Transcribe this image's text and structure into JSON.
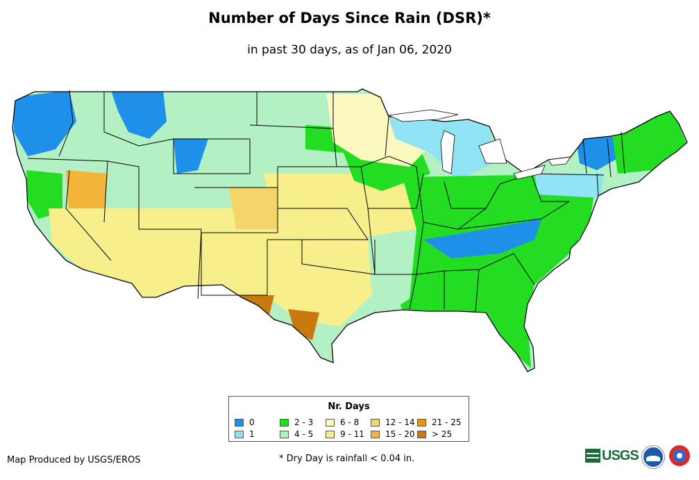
{
  "title": "Number of Days Since Rain (DSR)*",
  "subtitle": "in past 30 days, as of Jan 06, 2020",
  "legend": {
    "title": "Nr. Days",
    "items": [
      {
        "label": "0",
        "color": "#1e90ea"
      },
      {
        "label": "1",
        "color": "#8fe3f3"
      },
      {
        "label": "2 - 3",
        "color": "#22dd22"
      },
      {
        "label": "4 - 5",
        "color": "#b3f0c3"
      },
      {
        "label": "6 - 8",
        "color": "#fcf9c0"
      },
      {
        "label": "9 - 11",
        "color": "#f7ef8b"
      },
      {
        "label": "12 - 14",
        "color": "#f5d56a"
      },
      {
        "label": "15 - 20",
        "color": "#f3b43a"
      },
      {
        "label": "21 - 25",
        "color": "#e59817"
      },
      {
        "label": "> 25",
        "color": "#c87a10"
      }
    ]
  },
  "credit": "Map Produced by USGS/EROS",
  "footnote": "* Dry Day is rainfall < 0.04 in.",
  "logos": {
    "usgs": "USGS",
    "noaa": "noaa-logo",
    "nws": "nws-logo"
  }
}
